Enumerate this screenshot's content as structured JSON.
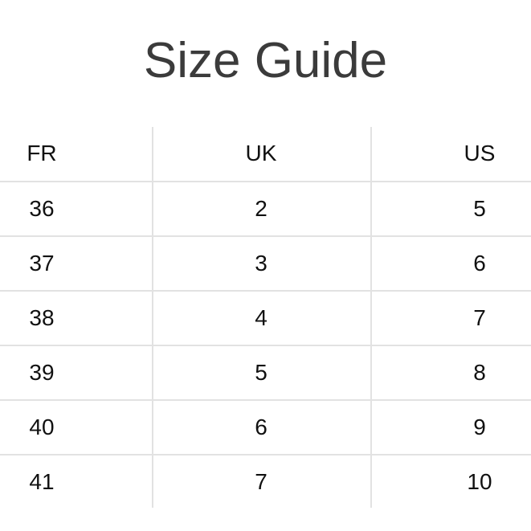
{
  "title": "Size Guide",
  "table": {
    "headers": [
      "FR",
      "UK",
      "US"
    ],
    "rows": [
      [
        "36",
        "2",
        "5"
      ],
      [
        "37",
        "3",
        "6"
      ],
      [
        "38",
        "4",
        "7"
      ],
      [
        "39",
        "5",
        "8"
      ],
      [
        "40",
        "6",
        "9"
      ],
      [
        "41",
        "7",
        "10"
      ]
    ]
  }
}
